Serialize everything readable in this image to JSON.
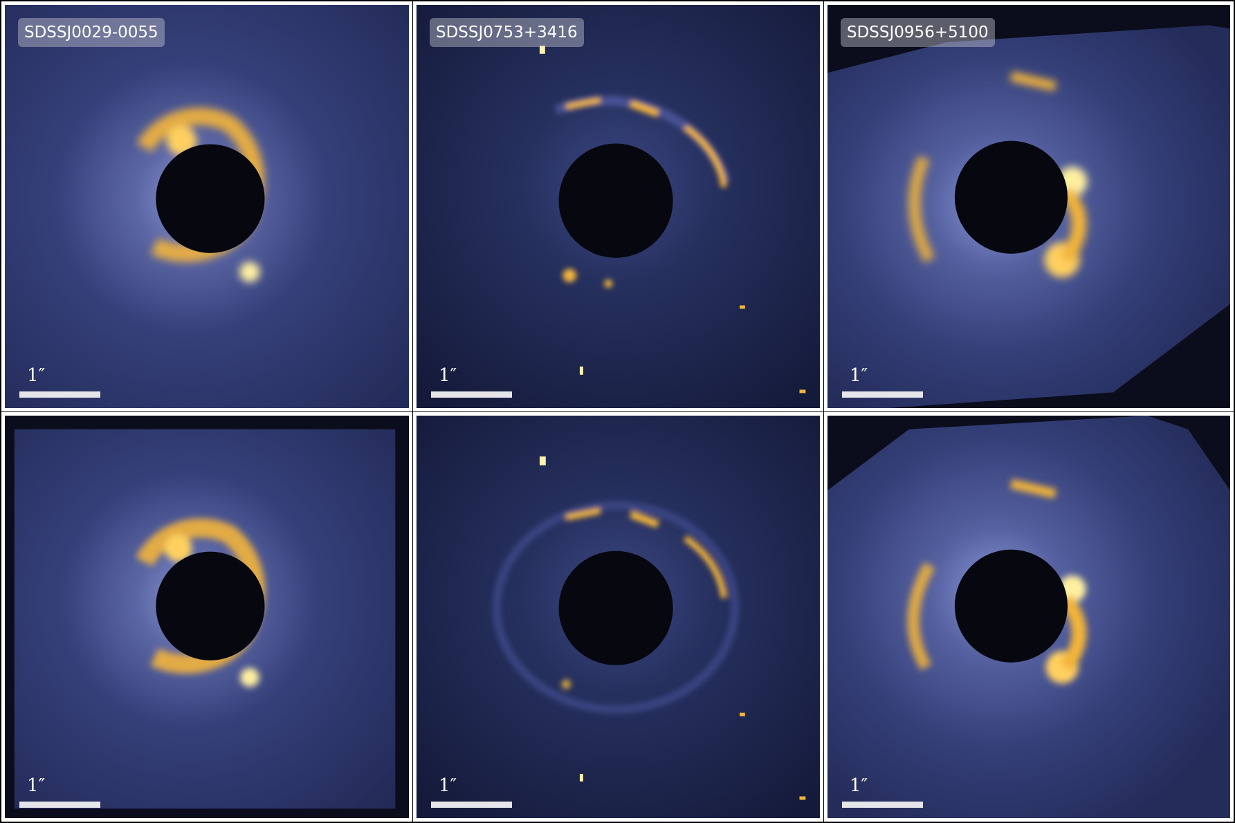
{
  "panels": [
    {
      "row": 0,
      "col": 0,
      "label": "SDSSJ0029-0055",
      "scalebar": "1″",
      "lens": "lens1"
    },
    {
      "row": 0,
      "col": 1,
      "label": "SDSSJ0753+3416",
      "scalebar": "1″",
      "lens": "lens2"
    },
    {
      "row": 0,
      "col": 2,
      "label": "SDSSJ0956+5100",
      "scalebar": "1″",
      "lens": "lens3"
    },
    {
      "row": 1,
      "col": 0,
      "label": "",
      "scalebar": "1″",
      "lens": "lens1"
    },
    {
      "row": 1,
      "col": 1,
      "label": "",
      "scalebar": "1″",
      "lens": "lens2"
    },
    {
      "row": 1,
      "col": 2,
      "label": "",
      "scalebar": "1″",
      "lens": "lens3"
    }
  ],
  "colors": {
    "frame": "#ffffff",
    "background": "#0b0d1c",
    "glow": "#6a76b8",
    "arc": "#f2b43a",
    "arc_bright": "#fff2b0",
    "masked_core": "#07080f"
  }
}
